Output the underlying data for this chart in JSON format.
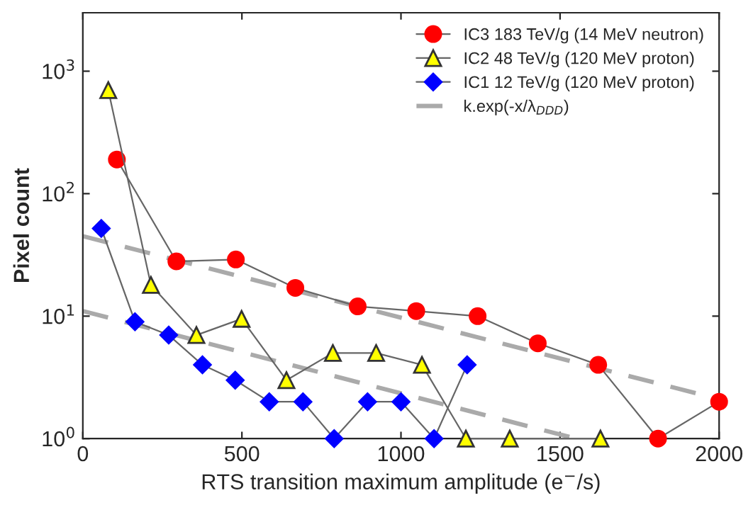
{
  "chart_data": {
    "type": "line",
    "xlabel": "RTS transition maximum amplitude (e$^{−}$/s)",
    "ylabel": "Pixel count",
    "log": "y",
    "xlim": [
      0,
      2000
    ],
    "xticks": [
      0,
      500,
      1000,
      1500,
      2000
    ],
    "ylim": [
      1,
      3000
    ],
    "yticks": [
      {
        "value": 1,
        "label": "10$^{0}$"
      },
      {
        "value": 10,
        "label": "10$^{1}$"
      },
      {
        "value": 100,
        "label": "10$^{2}$"
      },
      {
        "value": 1000,
        "label": "10$^{3}$"
      }
    ],
    "grid": false,
    "legend": "top right",
    "series": [
      {
        "name": "IC3 183 TeV/g (14 MeV neutron)",
        "color": "#ff0000",
        "marker": "circle",
        "line_style": "solid",
        "x": [
          107,
          294,
          481,
          668,
          864,
          1048,
          1241,
          1430,
          1620,
          1808,
          2000
        ],
        "values": [
          190,
          28,
          29,
          17,
          12,
          11,
          10,
          6,
          4,
          1,
          2
        ]
      },
      {
        "name": "IC2 48 TeV/g (120 MeV proton)",
        "color": "#ffff00",
        "marker": "triangle",
        "line_style": "solid",
        "x": [
          80,
          214,
          357,
          499,
          640,
          786,
          922,
          1066,
          1204,
          1342,
          1627
        ],
        "values": [
          700,
          18,
          7,
          9.5,
          3,
          5,
          5,
          4,
          1,
          1,
          1
        ]
      },
      {
        "name": "IC1 12 TeV/g (120 MeV proton)",
        "color": "#0000ff",
        "marker": "diamond",
        "line_style": "solid",
        "x": [
          58,
          164,
          270,
          376,
          479,
          586,
          692,
          790,
          895,
          1000,
          1104,
          1208
        ],
        "values": [
          52,
          9,
          7,
          4,
          3,
          2,
          2,
          1,
          2,
          2,
          1,
          4
        ]
      },
      {
        "name": "k.exp(-x/λ$_{DDD}$)",
        "color": "#aaaaaa",
        "marker": "none",
        "line_style": "dashed",
        "x": [
          0,
          2000
        ],
        "values": [
          45,
          2.1
        ]
      },
      {
        "color": "#aaaaaa",
        "marker": "none",
        "line_style": "dashed",
        "x": [
          0,
          1550
        ],
        "values": [
          11,
          1
        ]
      }
    ]
  }
}
